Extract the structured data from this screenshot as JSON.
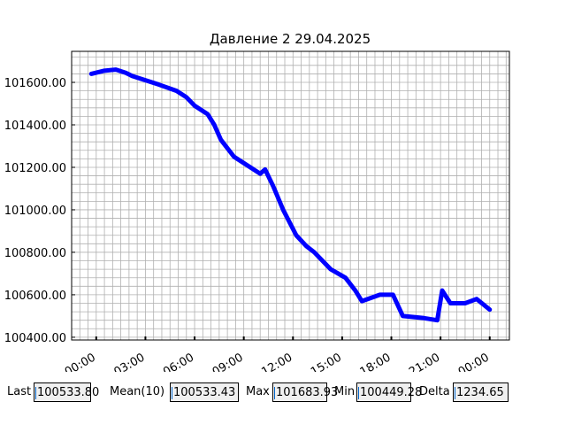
{
  "chart_data": {
    "type": "line",
    "title": "Давление 2 29.04.2025",
    "xlim": [
      -1.5,
      25.2
    ],
    "ylim": [
      100387,
      101746
    ],
    "xticks": [
      {
        "value": 0,
        "label": "00:00"
      },
      {
        "value": 3,
        "label": "03:00"
      },
      {
        "value": 6,
        "label": "06:00"
      },
      {
        "value": 9,
        "label": "09:00"
      },
      {
        "value": 12,
        "label": "12:00"
      },
      {
        "value": 15,
        "label": "15:00"
      },
      {
        "value": 18,
        "label": "18:00"
      },
      {
        "value": 21,
        "label": "21:00"
      },
      {
        "value": 24,
        "label": "00:00"
      }
    ],
    "yticks": [
      {
        "value": 100400,
        "label": "100400.00"
      },
      {
        "value": 100600,
        "label": "100600.00"
      },
      {
        "value": 100800,
        "label": "100800.00"
      },
      {
        "value": 101000,
        "label": "101000.00"
      },
      {
        "value": 101200,
        "label": "101200.00"
      },
      {
        "value": 101400,
        "label": "101400.00"
      },
      {
        "value": 101600,
        "label": "101600.00"
      }
    ],
    "xminorticks": [
      -1.5,
      -1,
      -0.5,
      0,
      0.5,
      1,
      1.5,
      2,
      2.5,
      3,
      3.5,
      4,
      4.5,
      5,
      5.5,
      6,
      6.5,
      7,
      7.5,
      8,
      8.5,
      9,
      9.5,
      10,
      10.5,
      11,
      11.5,
      12,
      12.5,
      13,
      13.5,
      14,
      14.5,
      15,
      15.5,
      16,
      16.5,
      17,
      17.5,
      18,
      18.5,
      19,
      19.5,
      20,
      20.5,
      21,
      21.5,
      22,
      22.5,
      23,
      23.5,
      24,
      24.5,
      25
    ],
    "yminorticks": [
      100400,
      100440,
      100480,
      100520,
      100560,
      100600,
      100640,
      100680,
      100720,
      100760,
      100800,
      100840,
      100880,
      100920,
      100960,
      101000,
      101040,
      101080,
      101120,
      101160,
      101200,
      101240,
      101280,
      101320,
      101360,
      101400,
      101440,
      101480,
      101520,
      101560,
      101600,
      101640,
      101680,
      101720
    ],
    "grid": true,
    "series": [
      {
        "color": "#0000ff",
        "x": [
          -0.3,
          0.5,
          1.2,
          1.8,
          2.2,
          3,
          3.8,
          4.9,
          5.5,
          6,
          6.8,
          7.2,
          7.6,
          8.4,
          9.4,
          10,
          10.3,
          10.8,
          11.4,
          11.8,
          12.2,
          12.8,
          13.3,
          14.3,
          15.2,
          15.8,
          16.2,
          17.3,
          18.1,
          18.7,
          20,
          20.8,
          21.1,
          21.6,
          22.5,
          23.2,
          24
        ],
        "values": [
          101640,
          101655,
          101660,
          101645,
          101630,
          101610,
          101590,
          101560,
          101530,
          101490,
          101450,
          101400,
          101330,
          101250,
          101200,
          101170,
          101190,
          101110,
          101000,
          100940,
          100880,
          100830,
          100800,
          100720,
          100680,
          100620,
          100570,
          100600,
          100600,
          100500,
          100490,
          100480,
          100620,
          100560,
          100560,
          100580,
          100530
        ]
      }
    ]
  },
  "stats": [
    {
      "label": "Last",
      "value": "100533.80"
    },
    {
      "label": "Mean(10)",
      "value": "100533.43"
    },
    {
      "label": "Max",
      "value": "101683.93"
    },
    {
      "label": "Min",
      "value": "100449.28"
    },
    {
      "label": "Delta",
      "value": "1234.65"
    }
  ]
}
